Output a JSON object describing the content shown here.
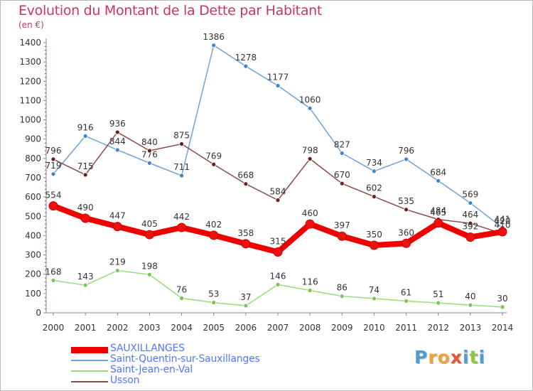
{
  "title": "Evolution du Montant de la Dette par Habitant",
  "unit_label": "(en €)",
  "logo": {
    "letters": [
      "P",
      "r",
      "o",
      "x",
      "i",
      "t",
      "i"
    ],
    "colors": [
      "#4a9fd8",
      "#f2a23a",
      "#f2a23a",
      "#e8542c",
      "#4a9fd8",
      "#8cc63f",
      "#4a9fd8"
    ]
  },
  "chart_data": {
    "type": "line",
    "x": [
      "2000",
      "2001",
      "2002",
      "2003",
      "2004",
      "2005",
      "2006",
      "2007",
      "2008",
      "2009",
      "2010",
      "2011",
      "2012",
      "2013",
      "2014"
    ],
    "ylim": [
      0,
      1400
    ],
    "yticks": [
      "0",
      "100",
      "200",
      "300",
      "400",
      "500",
      "600",
      "700",
      "800",
      "900",
      "1000",
      "1100",
      "1200",
      "1300",
      "1400"
    ],
    "grid": false,
    "legend_position": "bottom-left",
    "series": [
      {
        "name": "Saint-Quentin-sur-Sauxillanges",
        "color": "#6fa3d8",
        "marker_color": "#3f86c8",
        "values": [
          719,
          916,
          844,
          776,
          711,
          1386,
          1278,
          1177,
          1060,
          827,
          734,
          796,
          684,
          569,
          441
        ],
        "labels": [
          "719",
          "916",
          "844",
          "776",
          "711",
          "1386",
          "1278",
          "1177",
          "1060",
          "827",
          "734",
          "796",
          "684",
          "569",
          "441"
        ]
      },
      {
        "name": "Usson",
        "color": "#8a4b4b",
        "marker_color": "#6e1f1f",
        "values": [
          796,
          715,
          936,
          840,
          875,
          769,
          668,
          584,
          798,
          670,
          602,
          535,
          484,
          464,
          410
        ],
        "labels": [
          "796",
          "715",
          "936",
          "840",
          "875",
          "769",
          "668",
          "584",
          "798",
          "670",
          "602",
          "535",
          "484",
          "464",
          "410"
        ]
      },
      {
        "name": "Saint-Jean-en-Val",
        "color": "#99dd77",
        "marker_color": "#77c656",
        "values": [
          168,
          143,
          219,
          198,
          76,
          53,
          37,
          146,
          116,
          86,
          74,
          61,
          51,
          40,
          30
        ],
        "labels": [
          "168",
          "143",
          "219",
          "198",
          "76",
          "53",
          "37",
          "146",
          "116",
          "86",
          "74",
          "61",
          "51",
          "40",
          "30"
        ]
      },
      {
        "name": "SAUXILLANGES",
        "color": "#ee0000",
        "marker_color": "#ee1111",
        "values": [
          554,
          490,
          447,
          405,
          442,
          402,
          358,
          315,
          460,
          397,
          350,
          360,
          465,
          392,
          420
        ],
        "labels": [
          "554",
          "490",
          "447",
          "405",
          "442",
          "402",
          "358",
          "315",
          "460",
          "397",
          "350",
          "360",
          "465",
          "392",
          "420"
        ]
      }
    ],
    "legend_order": [
      "SAUXILLANGES",
      "Saint-Quentin-sur-Sauxillanges",
      "Saint-Jean-en-Val",
      "Usson"
    ]
  }
}
